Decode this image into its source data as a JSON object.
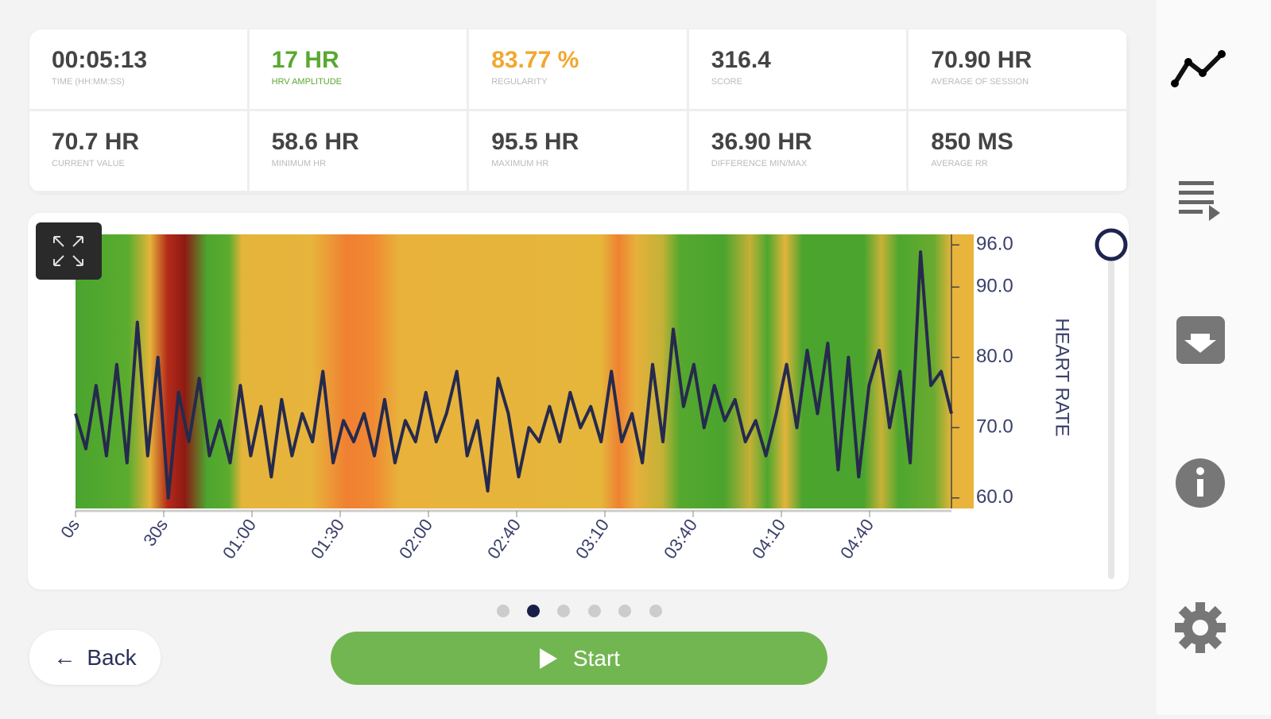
{
  "stats": [
    {
      "value": "00:05:13",
      "label": "TIME (HH:MM:SS)"
    },
    {
      "value": "17 HR",
      "label": "HRV AMPLITUDE"
    },
    {
      "value": "83.77 %",
      "label": "REGULARITY"
    },
    {
      "value": "316.4",
      "label": "SCORE"
    },
    {
      "value": "70.90 HR",
      "label": "AVERAGE OF SESSION"
    },
    {
      "value": "70.7 HR",
      "label": "CURRENT VALUE"
    },
    {
      "value": "58.6 HR",
      "label": "MINIMUM HR"
    },
    {
      "value": "95.5 HR",
      "label": "MAXIMUM HR"
    },
    {
      "value": "36.90 HR",
      "label": "DIFFERENCE MIN/MAX"
    },
    {
      "value": "850 MS",
      "label": "AVERAGE RR"
    }
  ],
  "chart_data": {
    "type": "line",
    "ylabel": "HEART RATE",
    "xtick_labels": [
      "0s",
      "30s",
      "01:00",
      "01:30",
      "02:00",
      "02:40",
      "03:10",
      "03:40",
      "04:10",
      "04:40"
    ],
    "ylim": [
      58.5,
      97.5
    ],
    "yticks": [
      {
        "value": 60,
        "label": "60.0"
      },
      {
        "value": 70,
        "label": "70.0"
      },
      {
        "value": 80,
        "label": "80.0"
      },
      {
        "value": 90,
        "label": "90.0"
      },
      {
        "value": 96,
        "label": "96.0"
      }
    ],
    "series": [
      {
        "name": "Heart rate",
        "color": "#262a4d",
        "values": [
          72,
          67,
          76,
          66,
          79,
          65,
          85,
          66,
          80,
          60,
          75,
          68,
          77,
          66,
          71,
          65,
          76,
          66,
          73,
          63,
          74,
          66,
          72,
          68,
          78,
          65,
          71,
          68,
          72,
          66,
          74,
          65,
          71,
          68,
          75,
          68,
          72,
          78,
          66,
          71,
          61,
          77,
          72,
          63,
          70,
          68,
          73,
          68,
          75,
          70,
          73,
          68,
          78,
          68,
          72,
          65,
          79,
          68,
          84,
          73,
          79,
          70,
          76,
          71,
          74,
          68,
          71,
          66,
          72,
          79,
          70,
          81,
          72,
          82,
          64,
          80,
          63,
          76,
          81,
          70,
          78,
          65,
          95,
          76,
          78,
          72
        ]
      }
    ]
  },
  "buttons": {
    "back": "Back",
    "start": "Start"
  }
}
